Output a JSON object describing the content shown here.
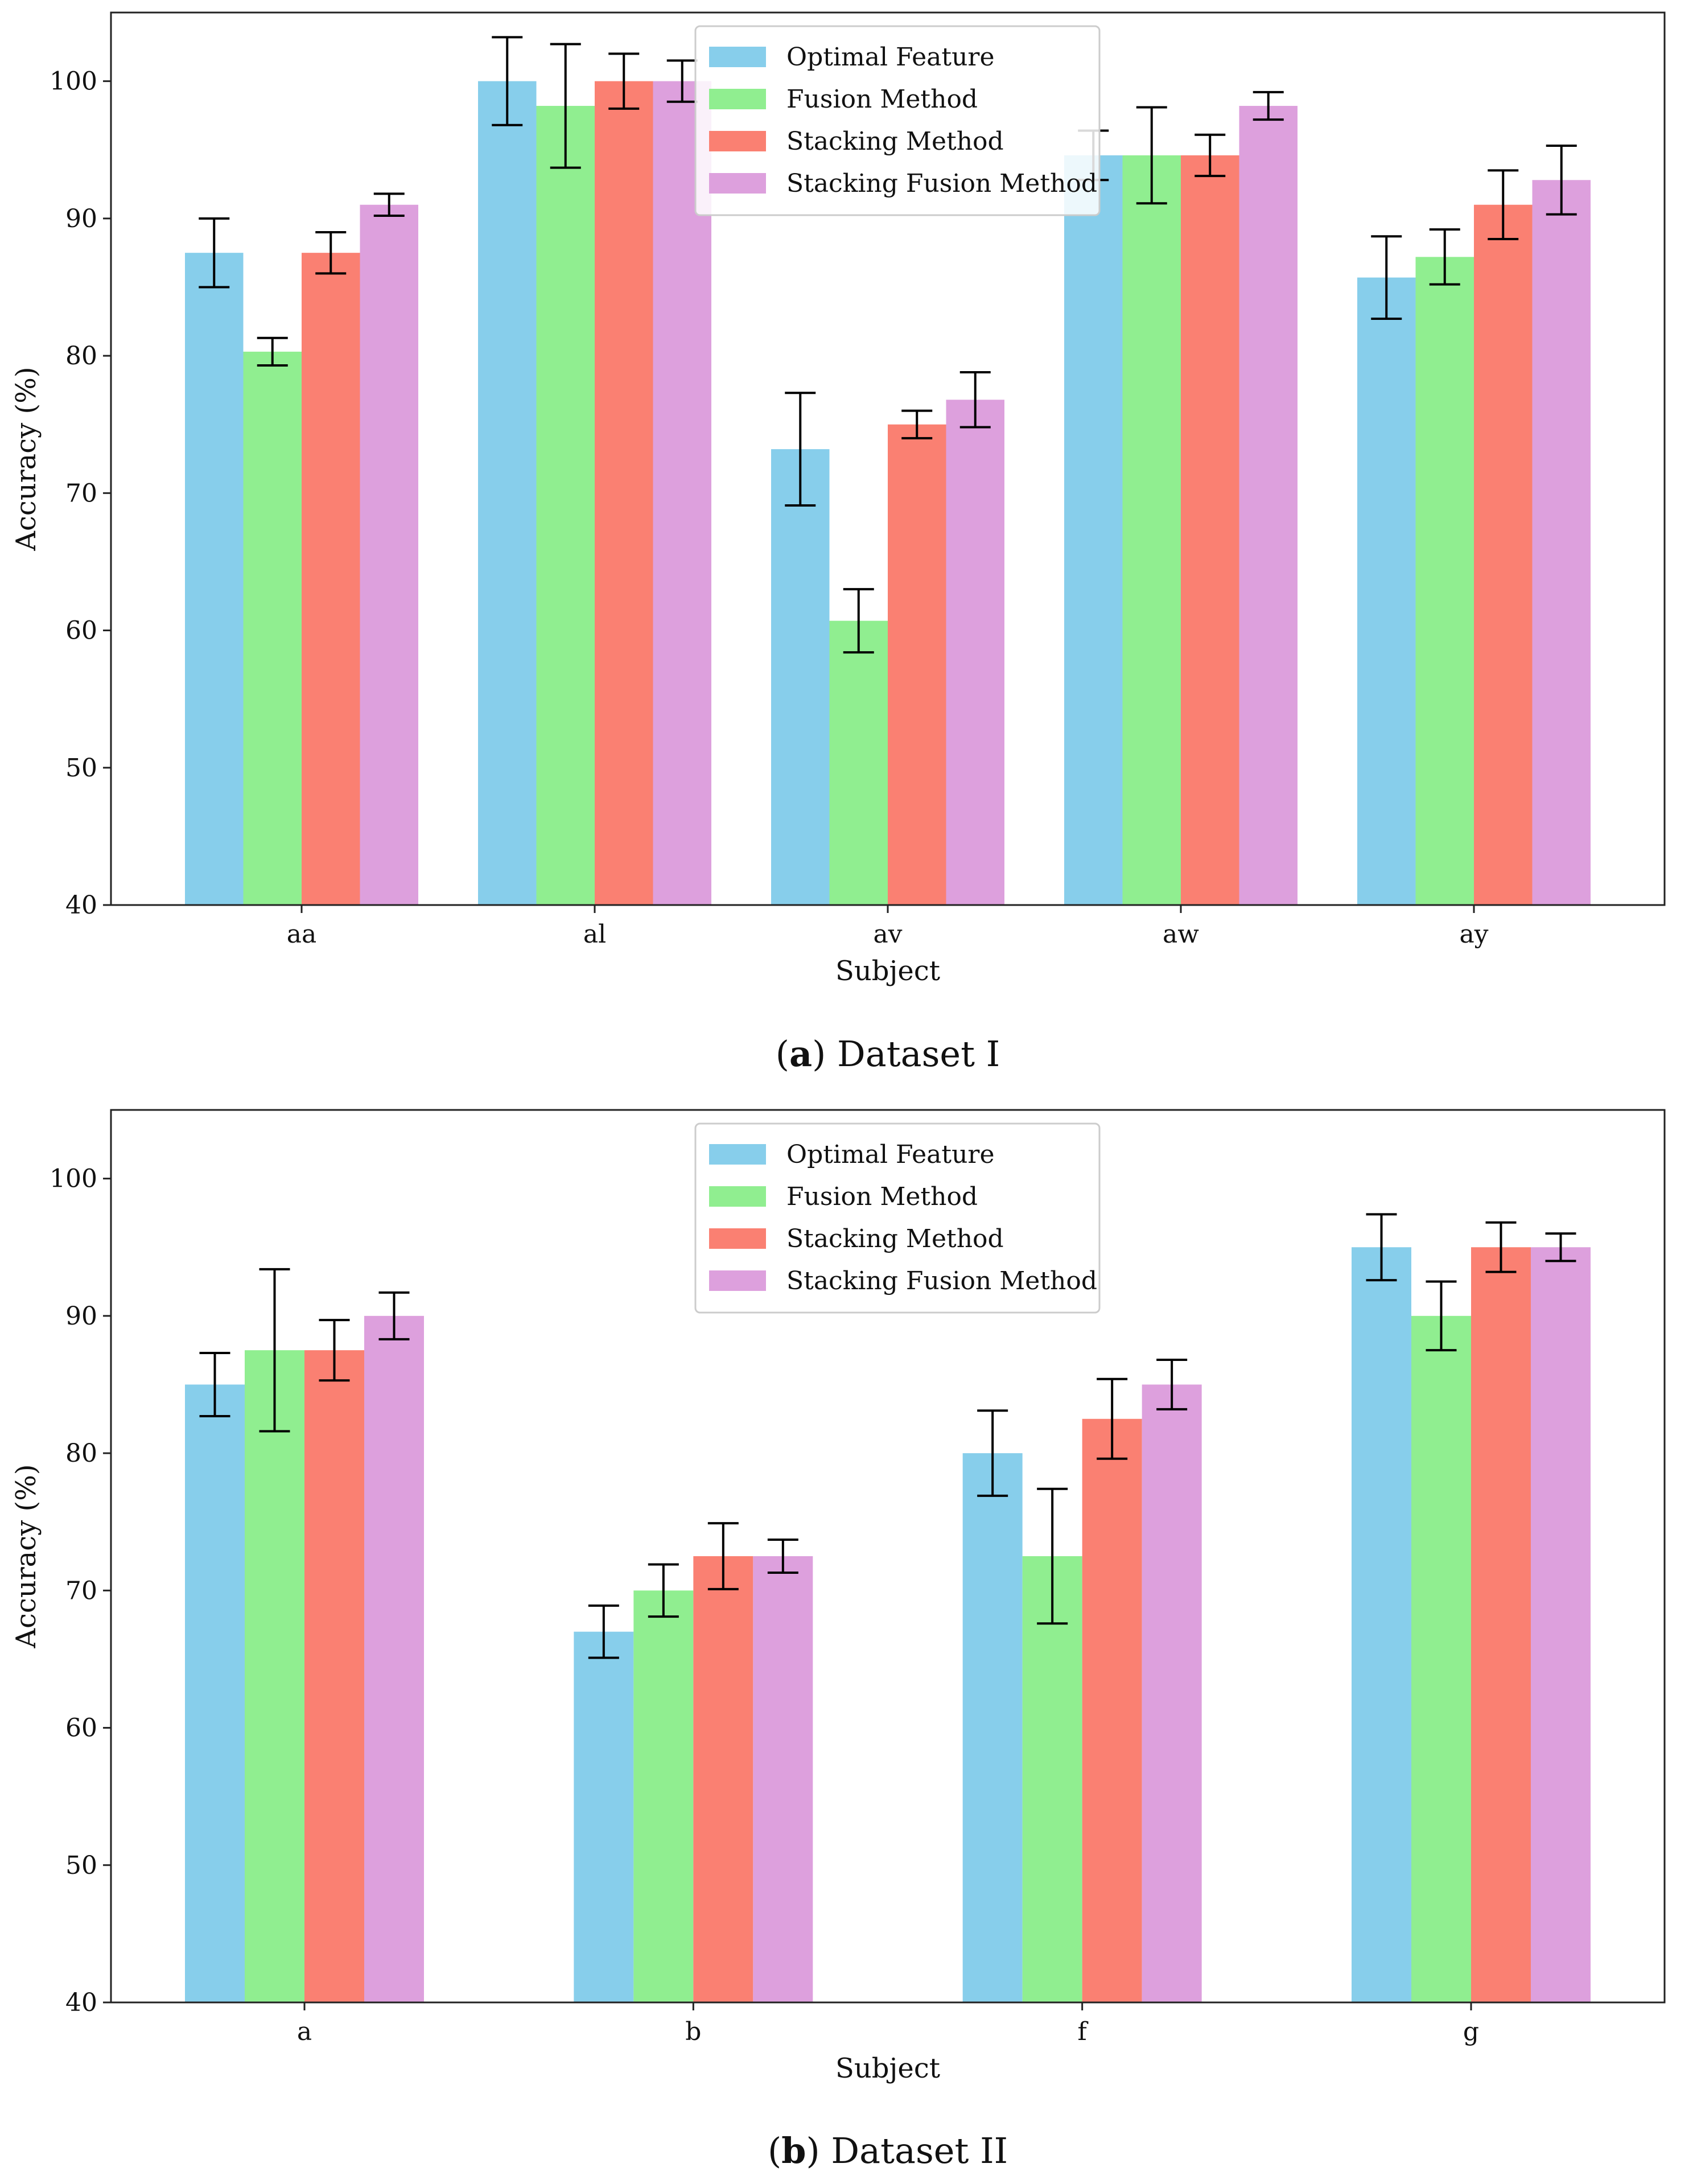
{
  "chart_data": [
    {
      "type": "bar",
      "caption_letter": "a",
      "caption_text": "Dataset I",
      "xlabel": "Subject",
      "ylabel": "Accuracy (%)",
      "ylim": [
        40,
        105
      ],
      "yticks": [
        40,
        50,
        60,
        70,
        80,
        90,
        100
      ],
      "categories": [
        "aa",
        "al",
        "av",
        "aw",
        "ay"
      ],
      "legend_position": "top-center",
      "series": [
        {
          "name": "Optimal Feature",
          "color": "#87CEEB",
          "values": [
            87.5,
            100,
            73.2,
            94.6,
            85.7
          ],
          "errors": [
            2.5,
            3.2,
            4.1,
            1.8,
            3.0
          ]
        },
        {
          "name": "Fusion Method",
          "color": "#90EE90",
          "values": [
            80.3,
            98.2,
            60.7,
            94.6,
            87.2
          ],
          "errors": [
            1.0,
            4.5,
            2.3,
            3.5,
            2.0
          ]
        },
        {
          "name": "Stacking Method",
          "color": "#FA8072",
          "values": [
            87.5,
            100,
            75.0,
            94.6,
            91.0
          ],
          "errors": [
            1.5,
            2.0,
            1.0,
            1.5,
            2.5
          ]
        },
        {
          "name": "Stacking Fusion Method",
          "color": "#DDA0DD",
          "values": [
            91.0,
            100,
            76.8,
            98.2,
            92.8
          ],
          "errors": [
            0.8,
            1.5,
            2.0,
            1.0,
            2.5
          ]
        }
      ]
    },
    {
      "type": "bar",
      "caption_letter": "b",
      "caption_text": "Dataset II",
      "xlabel": "Subject",
      "ylabel": "Accuracy (%)",
      "ylim": [
        40,
        105
      ],
      "yticks": [
        40,
        50,
        60,
        70,
        80,
        90,
        100
      ],
      "categories": [
        "a",
        "b",
        "f",
        "g"
      ],
      "legend_position": "top-center",
      "series": [
        {
          "name": "Optimal Feature",
          "color": "#87CEEB",
          "values": [
            85.0,
            67.0,
            80.0,
            95.0
          ],
          "errors": [
            2.3,
            1.9,
            3.1,
            2.4
          ]
        },
        {
          "name": "Fusion Method",
          "color": "#90EE90",
          "values": [
            87.5,
            70.0,
            72.5,
            90.0
          ],
          "errors": [
            5.9,
            1.9,
            4.9,
            2.5
          ]
        },
        {
          "name": "Stacking Method",
          "color": "#FA8072",
          "values": [
            87.5,
            72.5,
            82.5,
            95.0
          ],
          "errors": [
            2.2,
            2.4,
            2.9,
            1.8
          ]
        },
        {
          "name": "Stacking Fusion Method",
          "color": "#DDA0DD",
          "values": [
            90.0,
            72.5,
            85.0,
            95.0
          ],
          "errors": [
            1.7,
            1.2,
            1.8,
            1.0
          ]
        }
      ]
    }
  ]
}
